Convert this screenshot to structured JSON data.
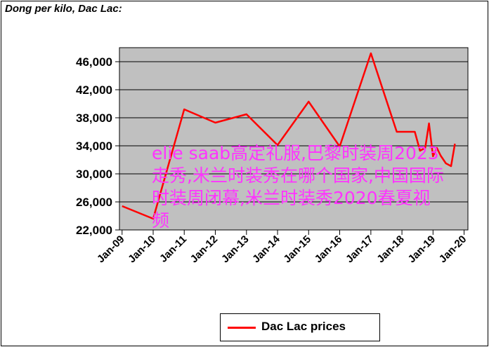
{
  "chart_data": {
    "type": "line",
    "title": "Dong per kilo, Dac Lac:",
    "xlabel": "",
    "ylabel": "",
    "x_ticks": [
      "Jan-09",
      "Jan-10",
      "Jan-11",
      "Jan-12",
      "Jan-13",
      "Jan-14",
      "Jan-15",
      "Jan-16",
      "Jan-17",
      "Jan-18",
      "Jan-19",
      "Jan-20"
    ],
    "y_ticks": [
      22000,
      26000,
      30000,
      34000,
      38000,
      42000,
      46000
    ],
    "y_tick_labels": [
      "22,000",
      "26,000",
      "30,000",
      "34,000",
      "38,000",
      "42,000",
      "46,000"
    ],
    "xlim": [
      "2008-12-01",
      "2020-02-15"
    ],
    "ylim": [
      22000,
      48000
    ],
    "grid": "horizontal",
    "legend_position": "bottom",
    "series": [
      {
        "name": "Dac Lac prices",
        "color": "#ff0000",
        "points": [
          {
            "x": "2009-01-01",
            "y": 25400
          },
          {
            "x": "2010-01-01",
            "y": 23600
          },
          {
            "x": "2011-01-01",
            "y": 39200
          },
          {
            "x": "2012-01-01",
            "y": 37300
          },
          {
            "x": "2013-01-01",
            "y": 38500
          },
          {
            "x": "2014-01-01",
            "y": 34100
          },
          {
            "x": "2015-01-01",
            "y": 40300
          },
          {
            "x": "2016-01-01",
            "y": 33900
          },
          {
            "x": "2017-01-01",
            "y": 47200
          },
          {
            "x": "2017-11-01",
            "y": 36000
          },
          {
            "x": "2018-06-01",
            "y": 36000
          },
          {
            "x": "2018-08-01",
            "y": 33300
          },
          {
            "x": "2018-10-01",
            "y": 33700
          },
          {
            "x": "2018-11-15",
            "y": 37200
          },
          {
            "x": "2019-01-01",
            "y": 32500
          },
          {
            "x": "2019-02-15",
            "y": 33700
          },
          {
            "x": "2019-04-01",
            "y": 32600
          },
          {
            "x": "2019-06-01",
            "y": 31500
          },
          {
            "x": "2019-08-01",
            "y": 31100
          },
          {
            "x": "2019-09-15",
            "y": 34300
          }
        ]
      }
    ]
  },
  "overlay": {
    "text": "elie saab高定礼服,巴黎时装周2023走秀,米兰时装秀在哪个国家,中国国际时装周闭幕,米兰时装秀2020春夏视频",
    "color": "#ff33ff"
  }
}
